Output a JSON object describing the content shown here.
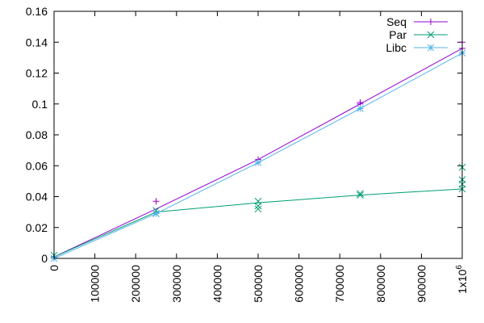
{
  "chart_data": {
    "type": "line",
    "title": "",
    "xlabel": "",
    "ylabel": "",
    "xlim": [
      0,
      1000000
    ],
    "ylim": [
      0,
      0.16
    ],
    "grid": false,
    "legend_placement": "top-right",
    "x_ticks": [
      0,
      100000,
      200000,
      300000,
      400000,
      500000,
      600000,
      700000,
      800000,
      900000,
      1000000
    ],
    "x_tick_labels": [
      "0",
      "100000",
      "200000",
      "300000",
      "400000",
      "500000",
      "600000",
      "700000",
      "800000",
      "900000",
      "1x10^6"
    ],
    "y_ticks": [
      0,
      0.02,
      0.04,
      0.06,
      0.08,
      0.1,
      0.12,
      0.14,
      0.16
    ],
    "y_tick_labels": [
      "0",
      "0.02",
      "0.04",
      "0.06",
      "0.08",
      "0.1",
      "0.12",
      "0.14",
      "0.16"
    ],
    "series": [
      {
        "name": "Seq",
        "color": "#9400d3",
        "marker": "plus",
        "line": [
          [
            0,
            0.001
          ],
          [
            250000,
            0.032
          ],
          [
            500000,
            0.064
          ],
          [
            750000,
            0.1
          ],
          [
            1000000,
            0.136
          ]
        ],
        "points": [
          [
            0,
            0.001
          ],
          [
            250000,
            0.037
          ],
          [
            500000,
            0.064
          ],
          [
            750000,
            0.1
          ],
          [
            750000,
            0.101
          ],
          [
            1000000,
            0.14
          ],
          [
            1000000,
            0.136
          ]
        ]
      },
      {
        "name": "Par",
        "color": "#009e73",
        "marker": "x",
        "line": [
          [
            0,
            0.001
          ],
          [
            250000,
            0.03
          ],
          [
            500000,
            0.036
          ],
          [
            750000,
            0.041
          ],
          [
            1000000,
            0.045
          ]
        ],
        "points": [
          [
            0,
            0.002
          ],
          [
            250000,
            0.031
          ],
          [
            250000,
            0.029
          ],
          [
            500000,
            0.037
          ],
          [
            500000,
            0.034
          ],
          [
            500000,
            0.032
          ],
          [
            750000,
            0.041
          ],
          [
            750000,
            0.042
          ],
          [
            1000000,
            0.059
          ],
          [
            1000000,
            0.051
          ],
          [
            1000000,
            0.048
          ],
          [
            1000000,
            0.045
          ]
        ]
      },
      {
        "name": "Libc",
        "color": "#56b4e9",
        "marker": "star",
        "line": [
          [
            0,
            0.0
          ],
          [
            250000,
            0.029
          ],
          [
            500000,
            0.062
          ],
          [
            750000,
            0.097
          ],
          [
            1000000,
            0.133
          ]
        ],
        "points": [
          [
            0,
            0.0
          ],
          [
            250000,
            0.029
          ],
          [
            500000,
            0.062
          ],
          [
            750000,
            0.097
          ],
          [
            1000000,
            0.133
          ]
        ]
      }
    ]
  }
}
